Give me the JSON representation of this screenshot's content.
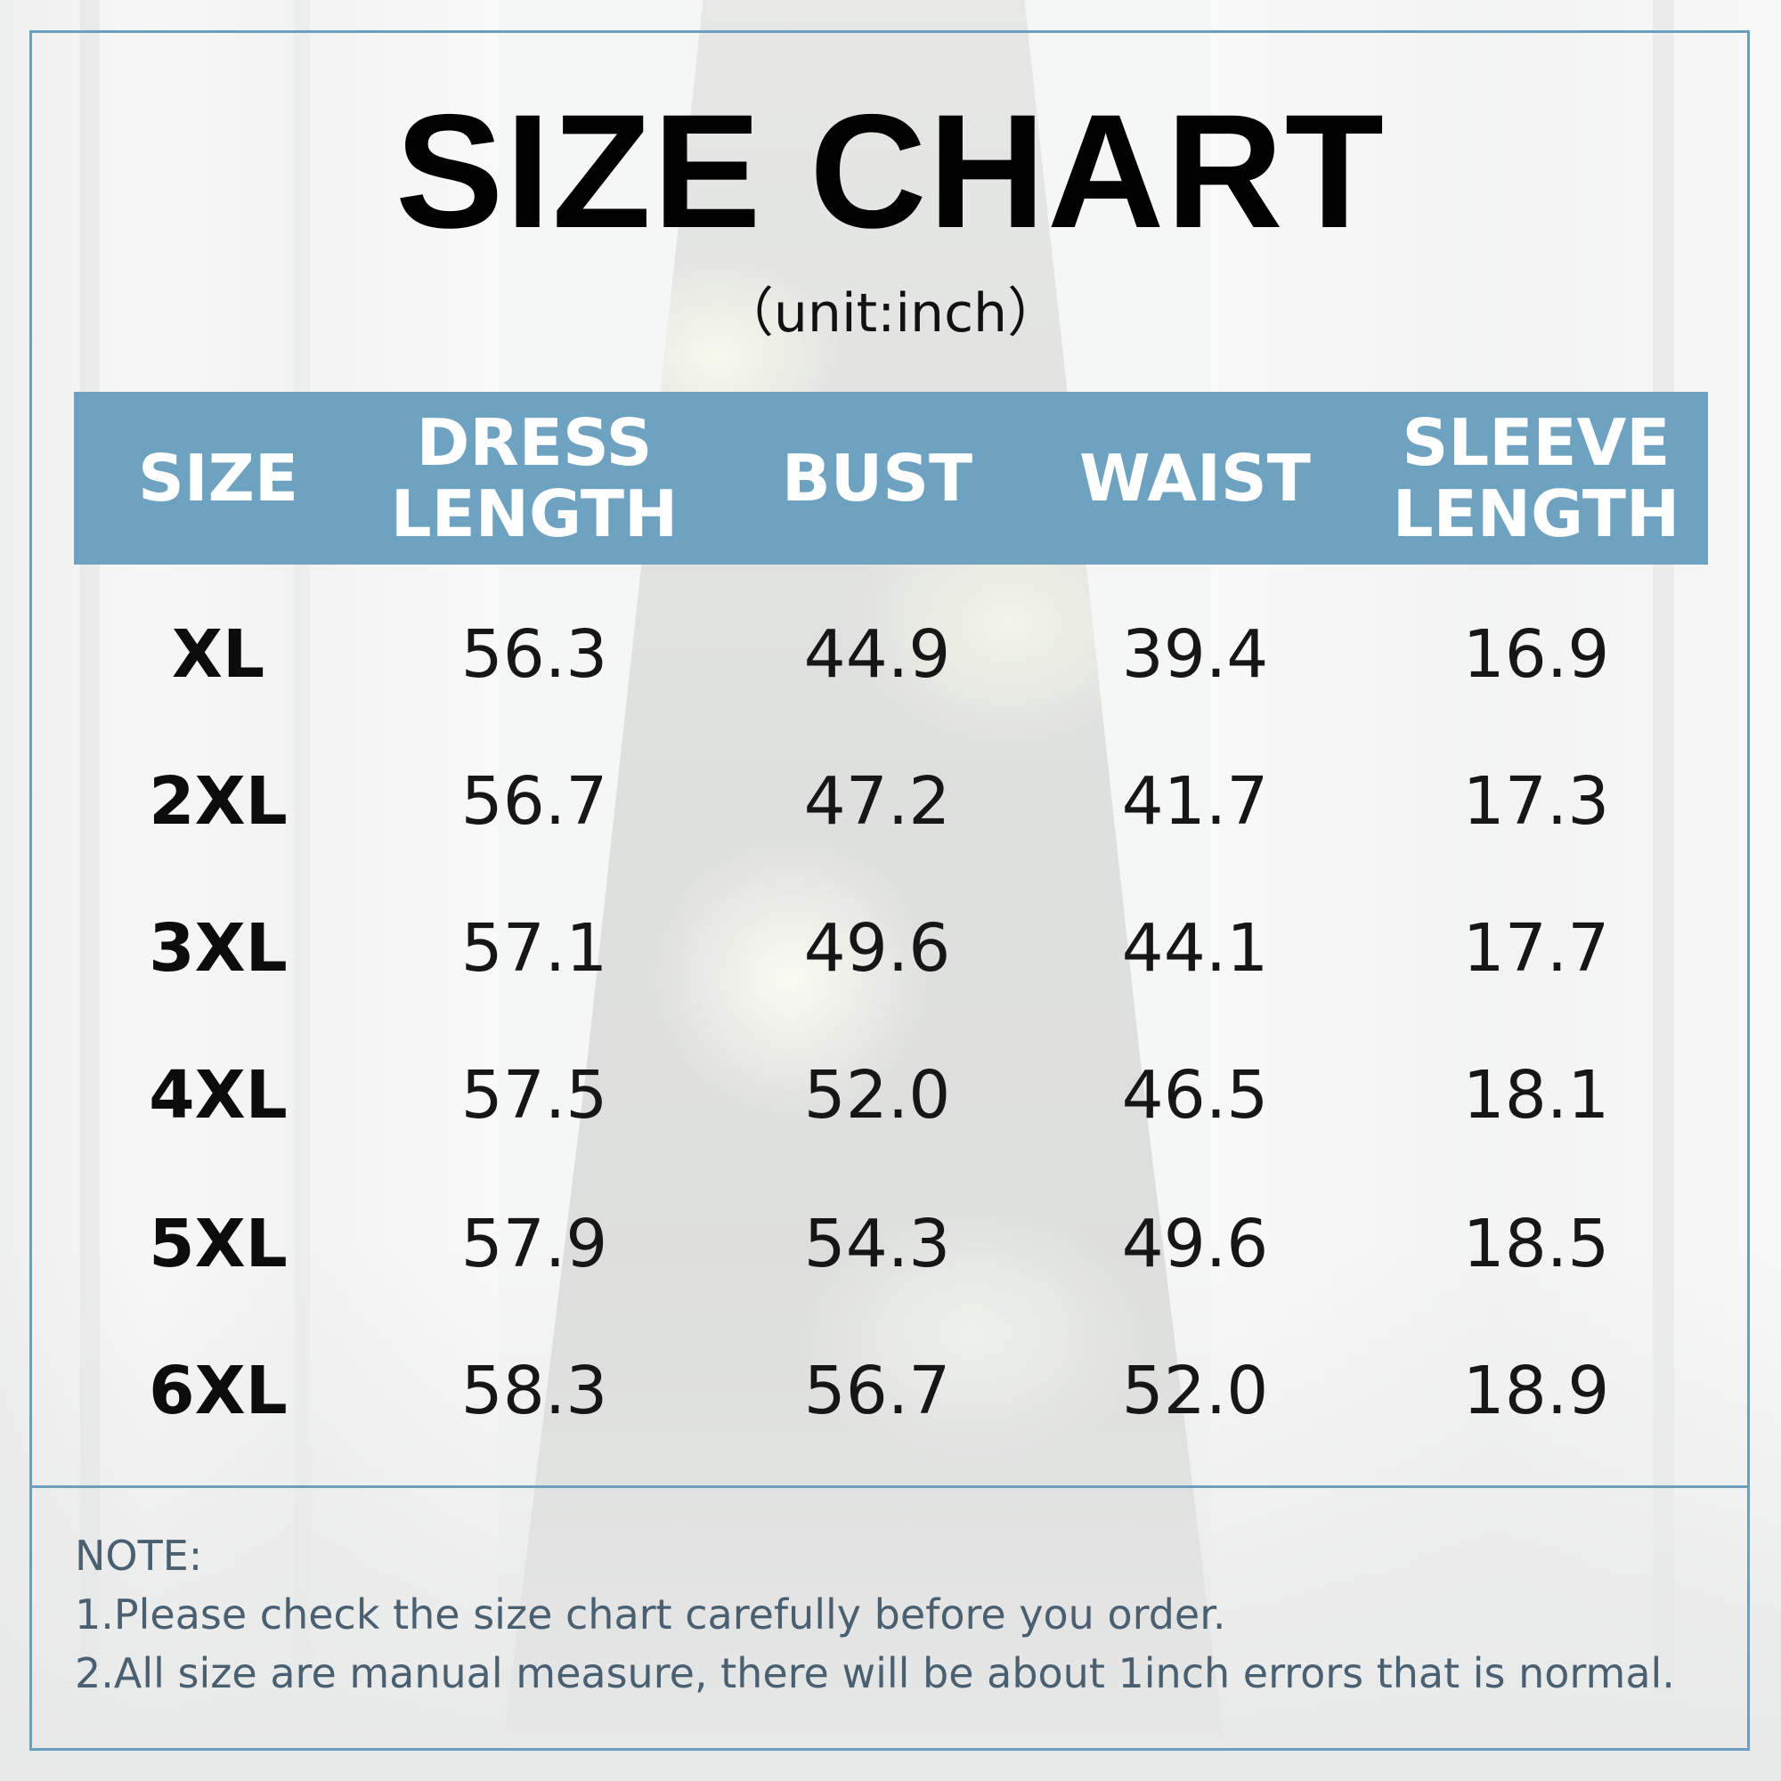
{
  "title": "SIZE CHART",
  "subtitle": "（unit:inch）",
  "colors": {
    "header_band": "#6ea2c1",
    "frame": "#6c9ebf",
    "header_text": "#ffffff",
    "note_text": "#4a5f70"
  },
  "table": {
    "headers": [
      "SIZE",
      "DRESS\nLENGTH",
      "BUST",
      "WAIST",
      "SLEEVE\nLENGTH"
    ],
    "rows": [
      [
        "XL",
        "56.3",
        "44.9",
        "39.4",
        "16.9"
      ],
      [
        "2XL",
        "56.7",
        "47.2",
        "41.7",
        "17.3"
      ],
      [
        "3XL",
        "57.1",
        "49.6",
        "44.1",
        "17.7"
      ],
      [
        "4XL",
        "57.5",
        "52.0",
        "46.5",
        "18.1"
      ],
      [
        "5XL",
        "57.9",
        "54.3",
        "49.6",
        "18.5"
      ],
      [
        "6XL",
        "58.3",
        "56.7",
        "52.0",
        "18.9"
      ]
    ]
  },
  "notes": {
    "heading": "NOTE:",
    "line1": "1.Please check the size chart carefully before you order.",
    "line2": "2.All size are manual measure, there will be about 1inch errors that is normal."
  }
}
